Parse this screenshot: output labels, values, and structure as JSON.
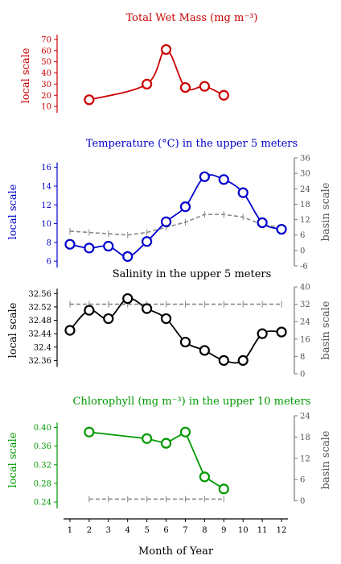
{
  "chart_data": [
    {
      "type": "line",
      "title": "Total Wet Mass (mg m⁻³)",
      "color": "#cc0000",
      "ylabel_left": "local scale",
      "ylim_left": [
        0,
        75
      ],
      "yticks_left": [
        10,
        20,
        30,
        40,
        50,
        60,
        70
      ],
      "series": [
        {
          "x": [
            2,
            5,
            6,
            7,
            8,
            9
          ],
          "values": [
            16,
            30,
            61,
            27,
            28,
            20
          ],
          "smooth": true
        }
      ]
    },
    {
      "type": "line",
      "title": "Temperature (°C) in the upper 5 meters",
      "color": "#0000cc",
      "ylabel_left": "local scale",
      "ylim_left": [
        5.5,
        17
      ],
      "yticks_left": [
        6,
        8,
        10,
        12,
        14,
        16
      ],
      "ylabel_right": "basin scale",
      "ylim_right": [
        -6,
        36
      ],
      "yticks_right": [
        -6,
        0,
        6,
        12,
        18,
        24,
        30,
        36
      ],
      "series": [
        {
          "x": [
            1,
            2,
            3,
            4,
            5,
            6,
            7,
            8,
            9,
            10,
            11,
            12
          ],
          "values": [
            7.8,
            7.4,
            7.6,
            6.5,
            8.1,
            10.2,
            11.8,
            15.0,
            14.7,
            13.3,
            10.1,
            9.4
          ],
          "smooth": true
        }
      ],
      "basin_series": {
        "x": [
          1,
          2,
          3,
          4,
          5,
          6,
          7,
          8,
          9,
          10,
          11,
          12
        ],
        "values": [
          7.5,
          7,
          6.5,
          6,
          7,
          9,
          11,
          14,
          14,
          13,
          10,
          9
        ],
        "color": "#888888",
        "dashed": true
      }
    },
    {
      "type": "line",
      "title": "Salinity in the upper 5 meters",
      "color": "#000000",
      "ylabel_left": "local scale",
      "ylim_left": [
        32.32,
        32.58
      ],
      "yticks_left": [
        32.36,
        32.4,
        32.44,
        32.48,
        32.52,
        32.56
      ],
      "ylabel_right": "basin scale",
      "ylim_right": [
        0,
        40
      ],
      "yticks_right": [
        0,
        8,
        16,
        24,
        32,
        40
      ],
      "series": [
        {
          "x": [
            1,
            2,
            3,
            4,
            5,
            6,
            7,
            8,
            9,
            10,
            11,
            12
          ],
          "values": [
            32.45,
            32.51,
            32.485,
            32.545,
            32.515,
            32.485,
            32.415,
            32.39,
            32.36,
            32.36,
            32.44,
            32.445
          ],
          "smooth": true
        }
      ],
      "basin_series": {
        "x": [
          1,
          2,
          3,
          4,
          5,
          6,
          7,
          8,
          9,
          10,
          11,
          12
        ],
        "values": [
          32.5,
          32.5,
          32.5,
          32.5,
          32.5,
          32.5,
          32.5,
          32.5,
          32.5,
          32.5,
          32.5,
          32.5
        ],
        "color": "#888888",
        "dashed": true
      }
    },
    {
      "type": "line",
      "title": "Chlorophyll (mg m⁻³) in the upper 10 meters",
      "color": "#009900",
      "ylabel_left": "local scale",
      "ylim_left": [
        0.235,
        0.425
      ],
      "yticks_left": [
        0.24,
        0.28,
        0.32,
        0.36,
        0.4
      ],
      "ylabel_right": "basin scale",
      "ylim_right": [
        -1,
        24
      ],
      "yticks_right": [
        0,
        6,
        12,
        18,
        24
      ],
      "series": [
        {
          "x": [
            2,
            5,
            6,
            7,
            8,
            9
          ],
          "values": [
            0.39,
            0.376,
            0.366,
            0.39,
            0.294,
            0.268
          ],
          "smooth": false
        }
      ],
      "basin_series": {
        "x": [
          2,
          3,
          4,
          5,
          6,
          7,
          8,
          9
        ],
        "values": [
          0.5,
          0.5,
          0.5,
          0.5,
          0.5,
          0.5,
          0.5,
          0.5
        ],
        "color": "#888888",
        "dashed": true
      }
    }
  ],
  "x_axis": {
    "label": "Month of Year",
    "ticks": [
      1,
      2,
      3,
      4,
      5,
      6,
      7,
      8,
      9,
      10,
      11,
      12
    ],
    "xlim": [
      0.5,
      12.5
    ]
  }
}
